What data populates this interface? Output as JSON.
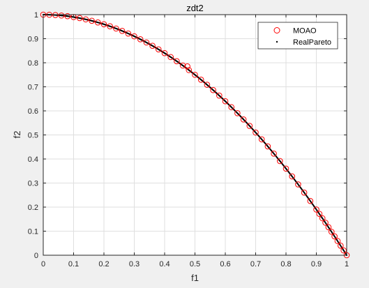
{
  "chart_data": {
    "type": "scatter",
    "title": "zdt2",
    "xlabel": "f1",
    "ylabel": "f2",
    "xlim": [
      0,
      1
    ],
    "ylim": [
      0,
      1
    ],
    "xticks": [
      0,
      0.1,
      0.2,
      0.3,
      0.4,
      0.5,
      0.6,
      0.7,
      0.8,
      0.9,
      1
    ],
    "yticks": [
      0,
      0.1,
      0.2,
      0.3,
      0.4,
      0.5,
      0.6,
      0.7,
      0.8,
      0.9,
      1
    ],
    "xtick_labels": [
      "0",
      "0.1",
      "0.2",
      "0.3",
      "0.4",
      "0.5",
      "0.6",
      "0.7",
      "0.8",
      "0.9",
      "1"
    ],
    "ytick_labels": [
      "0",
      "0.1",
      "0.2",
      "0.3",
      "0.4",
      "0.5",
      "0.6",
      "0.7",
      "0.8",
      "0.9",
      "1"
    ],
    "grid": true,
    "legend_position": "top-right",
    "series": [
      {
        "name": "MOAO",
        "marker": "open-circle",
        "color": "#ff0000",
        "x": [
          0,
          0.02,
          0.04,
          0.06,
          0.08,
          0.1,
          0.12,
          0.14,
          0.16,
          0.18,
          0.2,
          0.22,
          0.24,
          0.26,
          0.28,
          0.3,
          0.32,
          0.34,
          0.36,
          0.38,
          0.4,
          0.42,
          0.44,
          0.46,
          0.475,
          0.48,
          0.5,
          0.52,
          0.54,
          0.56,
          0.58,
          0.6,
          0.62,
          0.64,
          0.66,
          0.68,
          0.7,
          0.72,
          0.74,
          0.76,
          0.78,
          0.8,
          0.82,
          0.84,
          0.86,
          0.88,
          0.9,
          0.91,
          0.92,
          0.93,
          0.94,
          0.95,
          0.96,
          0.97,
          0.98,
          0.99,
          1.0
        ],
        "y": [
          1.0,
          0.9996,
          0.9984,
          0.9964,
          0.9936,
          0.99,
          0.9856,
          0.9804,
          0.9744,
          0.9676,
          0.96,
          0.9516,
          0.9424,
          0.9324,
          0.9216,
          0.91,
          0.8976,
          0.8844,
          0.8704,
          0.8556,
          0.84,
          0.8236,
          0.8064,
          0.7884,
          0.785,
          0.7696,
          0.75,
          0.7296,
          0.7084,
          0.6864,
          0.6636,
          0.64,
          0.6156,
          0.5904,
          0.5644,
          0.5376,
          0.51,
          0.4816,
          0.4524,
          0.4224,
          0.3916,
          0.36,
          0.3276,
          0.2944,
          0.2604,
          0.2256,
          0.19,
          0.1719,
          0.1536,
          0.1351,
          0.1164,
          0.0975,
          0.0784,
          0.0591,
          0.0396,
          0.0199,
          0.0
        ]
      },
      {
        "name": "RealPareto",
        "marker": "dot",
        "color": "#000000",
        "function": "f2 = 1 - f1^2"
      }
    ]
  }
}
